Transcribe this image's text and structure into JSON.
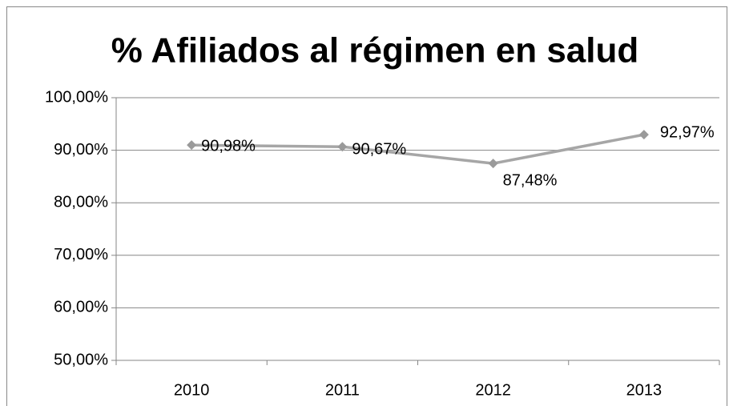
{
  "chart_data": {
    "type": "line",
    "title": "% Afiliados al régimen en salud",
    "categories": [
      "2010",
      "2011",
      "2012",
      "2013"
    ],
    "series": [
      {
        "name": "% Afiliados",
        "color": "#a6a6a6",
        "values": [
          90.98,
          90.67,
          87.48,
          92.97
        ],
        "value_labels": [
          "90,98%",
          "90,67%",
          "87,48%",
          "92,97%"
        ]
      }
    ],
    "ylim": [
      50,
      100
    ],
    "yticks": [
      {
        "value": 50,
        "label": "50,00%"
      },
      {
        "value": 60,
        "label": "60,00%"
      },
      {
        "value": 70,
        "label": "70,00%"
      },
      {
        "value": 80,
        "label": "80,00%"
      },
      {
        "value": 90,
        "label": "90,00%"
      },
      {
        "value": 100,
        "label": "100,00%"
      }
    ],
    "grid": true
  }
}
